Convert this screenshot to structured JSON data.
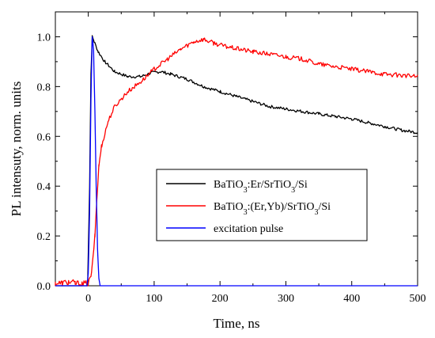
{
  "chart_data": {
    "type": "line",
    "xlabel": "Time, ns",
    "ylabel": "PL intensuty, norm. units",
    "xlim": [
      -50,
      500
    ],
    "ylim": [
      0,
      1.1
    ],
    "x_ticks": [
      0,
      100,
      200,
      300,
      400,
      500
    ],
    "y_ticks": [
      0.0,
      0.2,
      0.4,
      0.6,
      0.8,
      1.0
    ],
    "x_tick_labels": [
      "0",
      "100",
      "200",
      "300",
      "400",
      "500"
    ],
    "y_tick_labels": [
      "0.0",
      "0.2",
      "0.4",
      "0.6",
      "0.8",
      "1.0"
    ],
    "grid": false,
    "legend_position": "lower-right",
    "series": [
      {
        "name": "BaTiO3:Er/SrTiO3/Si",
        "legend_parts": [
          {
            "t": "BaTiO",
            "sub": false
          },
          {
            "t": "3",
            "sub": true
          },
          {
            "t": ":Er/SrTiO",
            "sub": false
          },
          {
            "t": "3",
            "sub": true
          },
          {
            "t": "/Si",
            "sub": false
          }
        ],
        "color": "#000000",
        "points": [
          [
            -50,
            0.0
          ],
          [
            -1,
            0.0
          ],
          [
            2,
            0.4
          ],
          [
            4,
            0.85
          ],
          [
            6,
            1.0
          ],
          [
            9,
            0.98
          ],
          [
            15,
            0.94
          ],
          [
            25,
            0.9
          ],
          [
            40,
            0.86
          ],
          [
            60,
            0.84
          ],
          [
            80,
            0.84
          ],
          [
            95,
            0.855
          ],
          [
            110,
            0.86
          ],
          [
            125,
            0.85
          ],
          [
            150,
            0.83
          ],
          [
            175,
            0.8
          ],
          [
            200,
            0.78
          ],
          [
            225,
            0.76
          ],
          [
            250,
            0.74
          ],
          [
            275,
            0.72
          ],
          [
            300,
            0.71
          ],
          [
            325,
            0.7
          ],
          [
            350,
            0.69
          ],
          [
            375,
            0.68
          ],
          [
            400,
            0.67
          ],
          [
            425,
            0.655
          ],
          [
            450,
            0.64
          ],
          [
            475,
            0.625
          ],
          [
            500,
            0.615
          ]
        ]
      },
      {
        "name": "BaTiO3:(Er,Yb)/SrTiO3/Si",
        "legend_parts": [
          {
            "t": "BaTiO",
            "sub": false
          },
          {
            "t": "3",
            "sub": true
          },
          {
            "t": ":(Er,Yb)/SrTiO",
            "sub": false
          },
          {
            "t": "3",
            "sub": true
          },
          {
            "t": "/Si",
            "sub": false
          }
        ],
        "color": "#ff0000",
        "points": [
          [
            -50,
            0.01
          ],
          [
            -40,
            0.01
          ],
          [
            -30,
            0.015
          ],
          [
            -20,
            0.01
          ],
          [
            -10,
            0.005
          ],
          [
            0,
            0.01
          ],
          [
            5,
            0.05
          ],
          [
            10,
            0.2
          ],
          [
            13,
            0.35
          ],
          [
            16,
            0.48
          ],
          [
            20,
            0.56
          ],
          [
            30,
            0.66
          ],
          [
            40,
            0.72
          ],
          [
            60,
            0.78
          ],
          [
            80,
            0.82
          ],
          [
            100,
            0.87
          ],
          [
            120,
            0.91
          ],
          [
            140,
            0.95
          ],
          [
            160,
            0.98
          ],
          [
            175,
            0.99
          ],
          [
            190,
            0.975
          ],
          [
            210,
            0.96
          ],
          [
            230,
            0.95
          ],
          [
            250,
            0.94
          ],
          [
            275,
            0.93
          ],
          [
            300,
            0.92
          ],
          [
            325,
            0.91
          ],
          [
            350,
            0.89
          ],
          [
            375,
            0.88
          ],
          [
            400,
            0.87
          ],
          [
            425,
            0.86
          ],
          [
            450,
            0.85
          ],
          [
            475,
            0.845
          ],
          [
            500,
            0.84
          ]
        ]
      },
      {
        "name": "excitation pulse",
        "legend_parts": [
          {
            "t": "excitation pulse",
            "sub": false
          }
        ],
        "color": "#0000ff",
        "points": [
          [
            -50,
            0.0
          ],
          [
            -2,
            0.0
          ],
          [
            0,
            0.05
          ],
          [
            2,
            0.3
          ],
          [
            4,
            0.75
          ],
          [
            6,
            1.0
          ],
          [
            8,
            0.95
          ],
          [
            10,
            0.7
          ],
          [
            12,
            0.4
          ],
          [
            14,
            0.15
          ],
          [
            16,
            0.03
          ],
          [
            18,
            0.0
          ],
          [
            500,
            0.0
          ]
        ]
      }
    ]
  }
}
